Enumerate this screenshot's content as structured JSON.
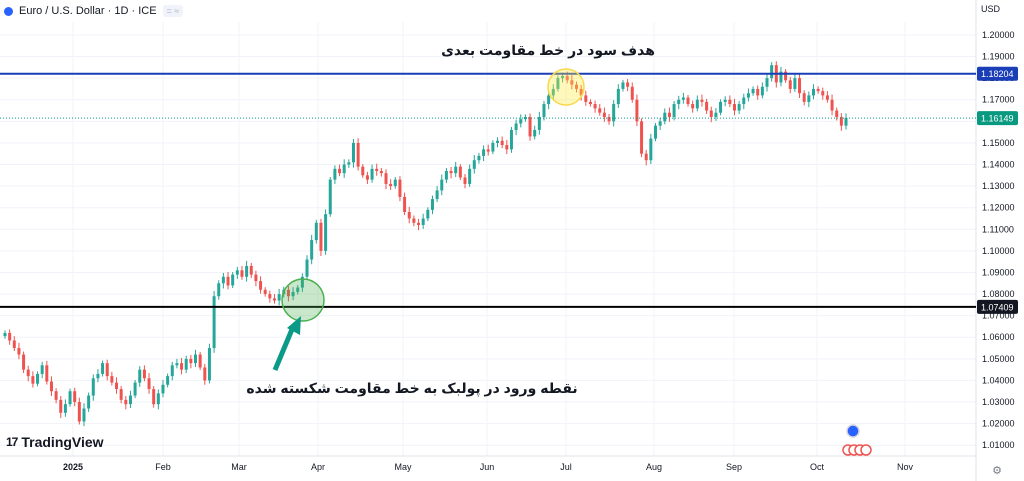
{
  "header": {
    "title": "Euro / U.S. Dollar · 1D · ICE",
    "currency": "USD"
  },
  "brand": {
    "name": "TradingView"
  },
  "annotations": {
    "target": "هدف سود در خط مقاومت بعدی",
    "entry": "نقطه ورود در پولبک به خط مقاومت شکسته شده"
  },
  "colors": {
    "up": "#26a69a",
    "down": "#ef5350",
    "resistance": "#1a3eb8",
    "support": "#000000",
    "last": "#089981"
  },
  "chart_data": {
    "type": "candlestick",
    "ylim": [
      1.005,
      1.206
    ],
    "y_ticks": [
      "1.20000",
      "1.19000",
      "1.18000",
      "1.17000",
      "1.16000",
      "1.15000",
      "1.14000",
      "1.13000",
      "1.12000",
      "1.11000",
      "1.10000",
      "1.09000",
      "1.08000",
      "1.07000",
      "1.06000",
      "1.05000",
      "1.04000",
      "1.03000",
      "1.02000",
      "1.01000"
    ],
    "x_ticks": [
      "2025",
      "Feb",
      "Mar",
      "Apr",
      "May",
      "Jun",
      "Jul",
      "Aug",
      "Sep",
      "Oct",
      "Nov"
    ],
    "price_labels": {
      "resistance": "1.18204",
      "last": "1.16149",
      "support": "1.07409"
    },
    "levels": {
      "resistance": 1.18204,
      "support": 1.07409,
      "last": 1.16149
    },
    "closes": [
      1.062,
      1.0585,
      1.055,
      1.052,
      1.045,
      1.042,
      1.0385,
      1.043,
      1.047,
      1.0395,
      1.035,
      1.031,
      1.025,
      1.029,
      1.035,
      1.03,
      1.021,
      1.027,
      1.033,
      1.041,
      1.043,
      1.048,
      1.042,
      1.039,
      1.036,
      1.031,
      1.029,
      1.033,
      1.039,
      1.045,
      1.041,
      1.036,
      1.029,
      1.034,
      1.038,
      1.042,
      1.047,
      1.048,
      1.045,
      1.05,
      1.048,
      1.052,
      1.046,
      1.04,
      1.055,
      1.079,
      1.085,
      1.088,
      1.084,
      1.089,
      1.091,
      1.088,
      1.093,
      1.089,
      1.086,
      1.082,
      1.08,
      1.078,
      1.077,
      1.08,
      1.082,
      1.079,
      1.081,
      1.083,
      1.088,
      1.096,
      1.105,
      1.113,
      1.1,
      1.117,
      1.133,
      1.138,
      1.136,
      1.14,
      1.141,
      1.15,
      1.139,
      1.135,
      1.133,
      1.138,
      1.137,
      1.136,
      1.131,
      1.13,
      1.133,
      1.125,
      1.118,
      1.115,
      1.113,
      1.112,
      1.115,
      1.119,
      1.124,
      1.128,
      1.133,
      1.137,
      1.136,
      1.139,
      1.134,
      1.131,
      1.138,
      1.142,
      1.144,
      1.147,
      1.146,
      1.15,
      1.151,
      1.149,
      1.147,
      1.156,
      1.159,
      1.161,
      1.162,
      1.153,
      1.156,
      1.162,
      1.168,
      1.172,
      1.175,
      1.18,
      1.181,
      1.179,
      1.177,
      1.175,
      1.172,
      1.169,
      1.168,
      1.166,
      1.164,
      1.162,
      1.16,
      1.168,
      1.175,
      1.178,
      1.176,
      1.17,
      1.16,
      1.145,
      1.142,
      1.152,
      1.158,
      1.16,
      1.164,
      1.162,
      1.168,
      1.17,
      1.171,
      1.168,
      1.166,
      1.17,
      1.169,
      1.165,
      1.162,
      1.164,
      1.169,
      1.17,
      1.168,
      1.165,
      1.168,
      1.171,
      1.173,
      1.175,
      1.172,
      1.176,
      1.18,
      1.186,
      1.178,
      1.183,
      1.179,
      1.175,
      1.18,
      1.173,
      1.169,
      1.172,
      1.175,
      1.174,
      1.172,
      1.17,
      1.165,
      1.162,
      1.158,
      1.1615
    ]
  }
}
